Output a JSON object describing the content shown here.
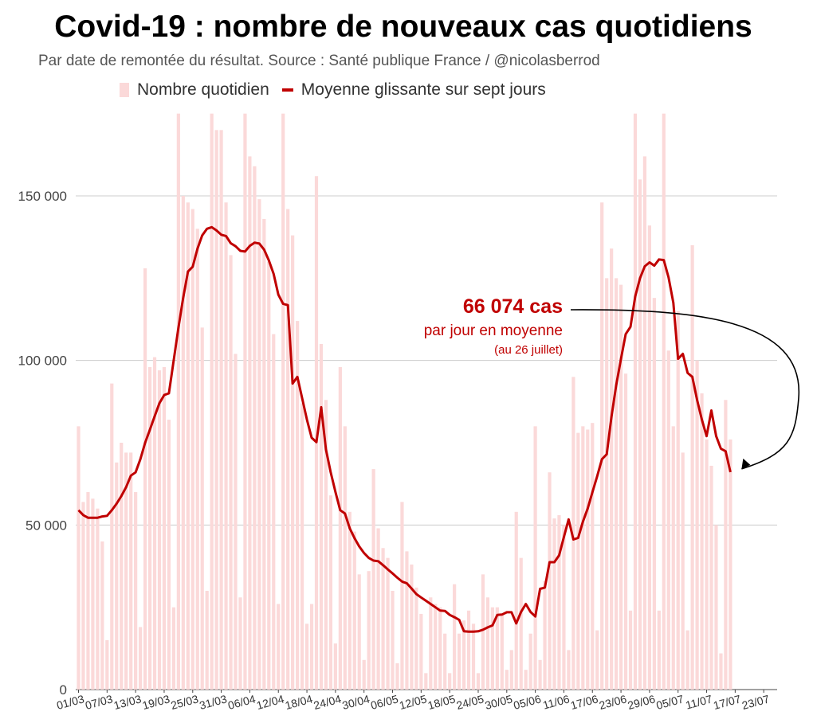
{
  "chart_data": {
    "type": "bar+line",
    "title": "Covid-19 : nombre de nouveaux cas quotidiens",
    "subtitle": "Par date de remontée du résultat. Source : Santé publique France / @nicolasberrod",
    "legend": {
      "bars": "Nombre quotidien",
      "line": "Moyenne glissante sur sept jours",
      "placement": "top"
    },
    "colors": {
      "bars": "#fbd9d9",
      "line": "#c00000",
      "grid": "#cccccc",
      "annotation": "#c00000"
    },
    "ylim": [
      0,
      175000
    ],
    "yticks": [
      {
        "value": 0,
        "label": "0"
      },
      {
        "value": 50000,
        "label": "50 000"
      },
      {
        "value": 100000,
        "label": "100 000"
      },
      {
        "value": 150000,
        "label": "150 000"
      }
    ],
    "xticks": [
      {
        "day": 0,
        "label": "01/03"
      },
      {
        "day": 6,
        "label": "07/03"
      },
      {
        "day": 12,
        "label": "13/03"
      },
      {
        "day": 18,
        "label": "19/03"
      },
      {
        "day": 24,
        "label": "25/03"
      },
      {
        "day": 30,
        "label": "31/03"
      },
      {
        "day": 36,
        "label": "06/04"
      },
      {
        "day": 42,
        "label": "12/04"
      },
      {
        "day": 48,
        "label": "18/04"
      },
      {
        "day": 54,
        "label": "24/04"
      },
      {
        "day": 60,
        "label": "30/04"
      },
      {
        "day": 66,
        "label": "06/05"
      },
      {
        "day": 72,
        "label": "12/05"
      },
      {
        "day": 78,
        "label": "18/05"
      },
      {
        "day": 84,
        "label": "24/05"
      },
      {
        "day": 90,
        "label": "30/05"
      },
      {
        "day": 96,
        "label": "05/06"
      },
      {
        "day": 102,
        "label": "11/06"
      },
      {
        "day": 108,
        "label": "17/06"
      },
      {
        "day": 114,
        "label": "23/06"
      },
      {
        "day": 120,
        "label": "29/06"
      },
      {
        "day": 126,
        "label": "05/07"
      },
      {
        "day": 132,
        "label": "11/07"
      },
      {
        "day": 138,
        "label": "17/07"
      },
      {
        "day": 144,
        "label": "23/07"
      }
    ],
    "daily": [
      80000,
      57000,
      60000,
      58000,
      55000,
      45000,
      15000,
      93000,
      69000,
      75000,
      72000,
      72000,
      60000,
      19000,
      128000,
      98000,
      101000,
      97000,
      98000,
      82000,
      25000,
      175000,
      150000,
      148000,
      146000,
      140000,
      110000,
      30000,
      175000,
      170000,
      170000,
      148000,
      132000,
      102000,
      28000,
      175000,
      162000,
      159000,
      149000,
      143000,
      130000,
      108000,
      26000,
      175000,
      146000,
      138000,
      112000,
      87000,
      20000,
      26000,
      156000,
      105000,
      88000,
      59000,
      14000,
      98000,
      80000,
      54000,
      48000,
      35000,
      9000,
      36000,
      67000,
      49000,
      43000,
      40000,
      30000,
      8000,
      57000,
      42000,
      38000,
      31000,
      23000,
      5000,
      28000,
      26000,
      25000,
      17000,
      5000,
      32000,
      17000,
      21000,
      24000,
      20000,
      5000,
      35000,
      28000,
      25000,
      25000,
      23000,
      6000,
      12000,
      54000,
      40000,
      6000,
      17000,
      80000,
      9000,
      33000,
      66000,
      52000,
      53000,
      50000,
      12000,
      95000,
      78000,
      80000,
      79000,
      81000,
      18000,
      148000,
      125000,
      134000,
      125000,
      123000,
      96000,
      24000,
      175000,
      155000,
      162000,
      141000,
      119000,
      24000,
      182000,
      103000,
      80000,
      115000,
      72000,
      18000,
      135000,
      100000,
      90000,
      76000,
      68000,
      50000,
      11000,
      88000,
      76000
    ],
    "rolling_avg": [
      54500,
      53000,
      52200,
      52200,
      52200,
      52600,
      52800,
      54500,
      56500,
      58800,
      61500,
      65000,
      66000,
      70000,
      75000,
      79000,
      83000,
      87000,
      89500,
      90000,
      100000,
      110000,
      119000,
      127000,
      128500,
      134000,
      138000,
      140000,
      140500,
      139500,
      138200,
      137800,
      135600,
      134700,
      133300,
      133100,
      134800,
      135800,
      135500,
      133700,
      130400,
      126300,
      120000,
      117200,
      116800,
      93000,
      95000,
      88500,
      82000,
      76500,
      75200,
      85800,
      73000,
      66000,
      60000,
      54500,
      53500,
      49000,
      46000,
      43500,
      41500,
      40000,
      39200,
      39000,
      37800,
      36500,
      35300,
      34000,
      32800,
      32300,
      30700,
      29000,
      28000,
      27000,
      26000,
      25000,
      24000,
      23900,
      22700,
      22000,
      21200,
      17700,
      17600,
      17600,
      17700,
      18200,
      18900,
      19500,
      22700,
      22800,
      23500,
      23500,
      20100,
      23600,
      26000,
      23600,
      22200,
      30600,
      31000,
      38700,
      38700,
      40800,
      46300,
      51700,
      45600,
      46100,
      51000,
      55000,
      60000,
      64800,
      70000,
      71500,
      82800,
      92500,
      100500,
      108000,
      110200,
      119500,
      125000,
      128600,
      129800,
      128800,
      130700,
      130500,
      125200,
      117500,
      100500,
      102000,
      96200,
      95000,
      88000,
      82000,
      77000,
      84800,
      77000,
      73200,
      72400,
      66074
    ],
    "annotation": {
      "value": "66 074 cas",
      "label": "par jour en moyenne",
      "date": "(au 26 juillet)"
    }
  }
}
